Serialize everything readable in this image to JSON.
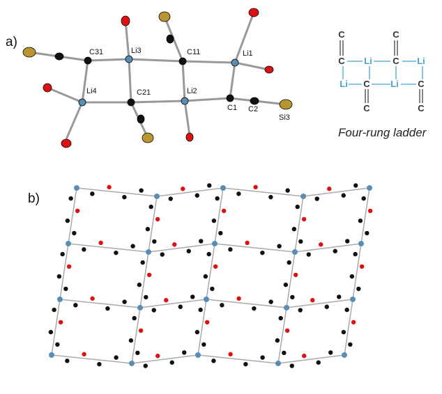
{
  "panels": [
    {
      "label": "a)",
      "atom_labels": [
        "C31",
        "Li3",
        "C11",
        "Li1",
        "Li4",
        "C21",
        "Li2",
        "C1",
        "C2",
        "Si3"
      ]
    },
    {
      "label": "b)"
    }
  ],
  "scheme": {
    "atoms": [
      "C",
      "C",
      "C",
      "Li",
      "C",
      "Li",
      "Li",
      "C",
      "Li",
      "C",
      "C",
      "C"
    ],
    "caption": "Four-rung ladder"
  }
}
